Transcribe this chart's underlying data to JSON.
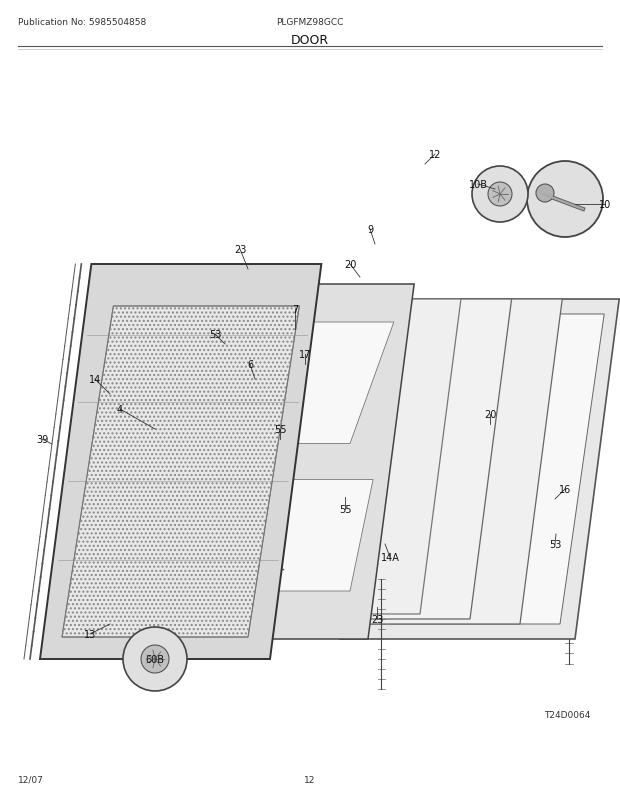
{
  "pub_no": "Publication No: 5985504858",
  "model": "PLGFMZ98GCC",
  "section": "DOOR",
  "date": "12/07",
  "page": "12",
  "diagram_id": "T24D0064",
  "bg_color": "#ffffff",
  "fig_width": 6.2,
  "fig_height": 8.03,
  "dpi": 100,
  "title_fontsize": 8,
  "small_fontsize": 6.5
}
